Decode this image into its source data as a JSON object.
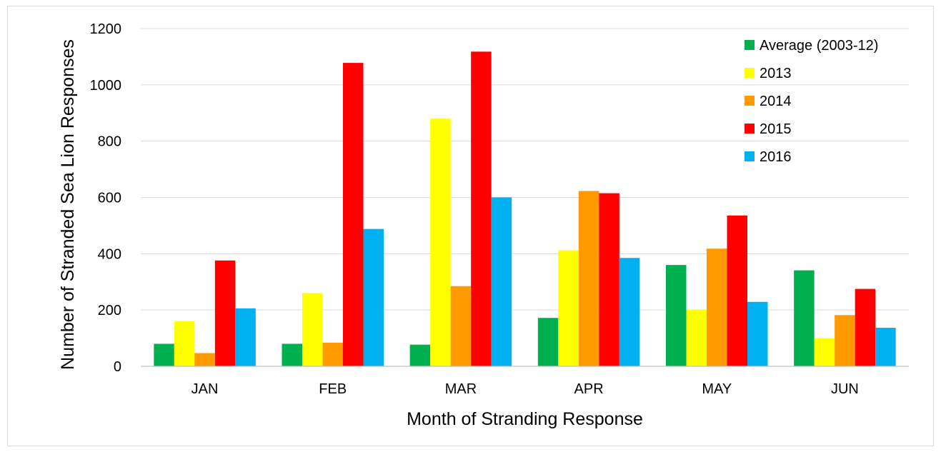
{
  "chart_data": {
    "type": "bar",
    "categories": [
      "JAN",
      "FEB",
      "MAR",
      "APR",
      "MAY",
      "JUN"
    ],
    "series": [
      {
        "name": "Average (2003-12)",
        "color": "#00b050",
        "values": [
          80,
          80,
          77,
          172,
          360,
          341
        ]
      },
      {
        "name": "2013",
        "color": "#ffff00",
        "values": [
          160,
          260,
          880,
          412,
          202,
          100
        ]
      },
      {
        "name": "2014",
        "color": "#ff9900",
        "values": [
          47,
          84,
          285,
          623,
          418,
          182
        ]
      },
      {
        "name": "2015",
        "color": "#ff0000",
        "values": [
          376,
          1078,
          1118,
          615,
          536,
          275
        ]
      },
      {
        "name": "2016",
        "color": "#00b0f0",
        "values": [
          206,
          488,
          600,
          385,
          229,
          137
        ]
      }
    ],
    "xlabel": "Month of Stranding Response",
    "ylabel": "Number of Stranded Sea Lion Responses",
    "ylim": [
      0,
      1200
    ],
    "yticks": [
      0,
      200,
      400,
      600,
      800,
      1000,
      1200
    ],
    "ytick_labels": [
      "0",
      "200",
      "400",
      "600",
      "800",
      "1000",
      "1200"
    ],
    "grid": true,
    "legend_position": "top-right"
  }
}
